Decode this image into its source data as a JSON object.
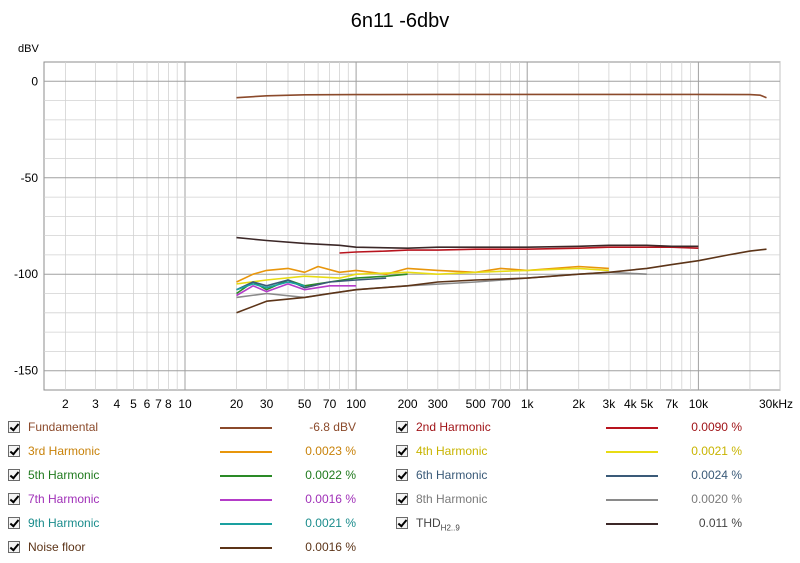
{
  "chart_data": {
    "type": "line",
    "title": "6n11 -6dbv",
    "ylabel": "dBV",
    "xlabel": "",
    "xscale": "log",
    "xlim": [
      1.5,
      30000
    ],
    "ylim": [
      -160,
      10
    ],
    "grid": true,
    "y_ticks": [
      {
        "v": 0,
        "label": "0"
      },
      {
        "v": -50,
        "label": "-50"
      },
      {
        "v": -100,
        "label": "-100"
      },
      {
        "v": -150,
        "label": "-150"
      }
    ],
    "x_ticks": [
      {
        "v": 2,
        "label": "2"
      },
      {
        "v": 3,
        "label": "3"
      },
      {
        "v": 4,
        "label": "4"
      },
      {
        "v": 5,
        "label": "5"
      },
      {
        "v": 6,
        "label": "6"
      },
      {
        "v": 7,
        "label": "7"
      },
      {
        "v": 8,
        "label": "8"
      },
      {
        "v": 10,
        "label": "10"
      },
      {
        "v": 20,
        "label": "20"
      },
      {
        "v": 30,
        "label": "30"
      },
      {
        "v": 50,
        "label": "50"
      },
      {
        "v": 70,
        "label": "70"
      },
      {
        "v": 100,
        "label": "100"
      },
      {
        "v": 200,
        "label": "200"
      },
      {
        "v": 300,
        "label": "300"
      },
      {
        "v": 500,
        "label": "500"
      },
      {
        "v": 700,
        "label": "700"
      },
      {
        "v": 1000,
        "label": "1k"
      },
      {
        "v": 2000,
        "label": "2k"
      },
      {
        "v": 3000,
        "label": "3k"
      },
      {
        "v": 4000,
        "label": "4k"
      },
      {
        "v": 5000,
        "label": "5k"
      },
      {
        "v": 7000,
        "label": "7k"
      },
      {
        "v": 10000,
        "label": "10k"
      },
      {
        "v": 30000,
        "label": "30kHz"
      }
    ],
    "series": [
      {
        "name": "Fundamental",
        "value": "-6.8 dBV",
        "color": "#8b4a2b",
        "text_color": "#8b4a2b",
        "x": [
          20,
          30,
          50,
          100,
          300,
          1000,
          3000,
          10000,
          20000,
          23000,
          25000
        ],
        "y": [
          -8.5,
          -7.5,
          -7.0,
          -6.9,
          -6.8,
          -6.8,
          -6.8,
          -6.8,
          -6.9,
          -7.2,
          -8.5
        ]
      },
      {
        "name": "2nd Harmonic",
        "value": "0.0090 %",
        "color": "#b8141e",
        "text_color": "#a01418",
        "x": [
          80,
          100,
          150,
          200,
          300,
          500,
          700,
          1000,
          2000,
          3000,
          5000,
          7000,
          10000
        ],
        "y": [
          -89,
          -88.5,
          -88,
          -87.5,
          -87.5,
          -87,
          -87,
          -87,
          -86.5,
          -86,
          -86,
          -86,
          -86.5
        ]
      },
      {
        "name": "3rd Harmonic",
        "value": "0.0023 %",
        "color": "#e8960c",
        "text_color": "#c8820a",
        "x": [
          20,
          25,
          30,
          40,
          50,
          60,
          80,
          100,
          150,
          200,
          300,
          500,
          700,
          1000,
          2000,
          3000
        ],
        "y": [
          -104,
          -100,
          -98,
          -97,
          -99,
          -96,
          -99,
          -98,
          -100,
          -97,
          -98,
          -99,
          -97,
          -98,
          -96,
          -97
        ]
      },
      {
        "name": "4th Harmonic",
        "value": "0.0021 %",
        "color": "#e8dc14",
        "text_color": "#c8b400",
        "x": [
          20,
          30,
          50,
          80,
          100,
          200,
          300,
          500,
          1000,
          2000,
          3000
        ],
        "y": [
          -105,
          -103,
          -101,
          -102,
          -100,
          -99,
          -100,
          -99,
          -98,
          -97,
          -98
        ]
      },
      {
        "name": "5th Harmonic",
        "value": "0.0022 %",
        "color": "#2a8a26",
        "text_color": "#207a1e",
        "x": [
          20,
          25,
          30,
          40,
          50,
          70,
          100,
          150,
          200
        ],
        "y": [
          -110,
          -104,
          -108,
          -103,
          -106,
          -104,
          -102,
          -101,
          -100
        ]
      },
      {
        "name": "6th Harmonic",
        "value": "0.0024 %",
        "color": "#3a5a78",
        "text_color": "#3a5a78",
        "x": [
          20,
          25,
          30,
          40,
          50,
          70,
          100,
          150
        ],
        "y": [
          -108,
          -104,
          -106,
          -103,
          -107,
          -104,
          -103,
          -102
        ]
      },
      {
        "name": "7th Harmonic",
        "value": "0.0016 %",
        "color": "#b43cc8",
        "text_color": "#a030b8",
        "x": [
          20,
          25,
          30,
          40,
          50,
          70,
          100
        ],
        "y": [
          -111,
          -106,
          -109,
          -105,
          -108,
          -106,
          -106
        ]
      },
      {
        "name": "8th Harmonic",
        "value": "0.0020 %",
        "color": "#8a8a8a",
        "text_color": "#7a7a7a",
        "x": [
          20,
          30,
          50,
          100,
          200,
          500,
          1000,
          2000,
          3000,
          5000
        ],
        "y": [
          -112,
          -110,
          -112,
          -108,
          -106,
          -104,
          -102,
          -100,
          -99,
          -100
        ]
      },
      {
        "name": "9th Harmonic",
        "value": "0.0021 %",
        "color": "#1aa0a0",
        "text_color": "#1a8c8c",
        "x": [
          20,
          25,
          30,
          40,
          50
        ],
        "y": [
          -108,
          -105,
          -107,
          -104,
          -106
        ]
      },
      {
        "name": "THD",
        "name_sub": "H2..9",
        "value": "0.011 %",
        "color": "#3c2828",
        "text_color": "#444444",
        "x": [
          20,
          30,
          50,
          80,
          100,
          200,
          300,
          500,
          1000,
          2000,
          3000,
          5000,
          7000,
          10000
        ],
        "y": [
          -81,
          -82.5,
          -84,
          -85,
          -86,
          -86.5,
          -86,
          -86,
          -86,
          -85.5,
          -85,
          -85,
          -85.5,
          -85.5
        ]
      },
      {
        "name": "Noise floor",
        "value": "0.0016 %",
        "color": "#5c3418",
        "text_color": "#5c3418",
        "x": [
          20,
          30,
          50,
          70,
          100,
          200,
          300,
          500,
          1000,
          2000,
          3000,
          5000,
          7000,
          10000,
          15000,
          20000,
          25000
        ],
        "y": [
          -120,
          -114,
          -112,
          -110,
          -108,
          -106,
          -104,
          -103,
          -102,
          -100,
          -99,
          -97,
          -95,
          -93,
          -90,
          -88,
          -87
        ]
      }
    ]
  }
}
